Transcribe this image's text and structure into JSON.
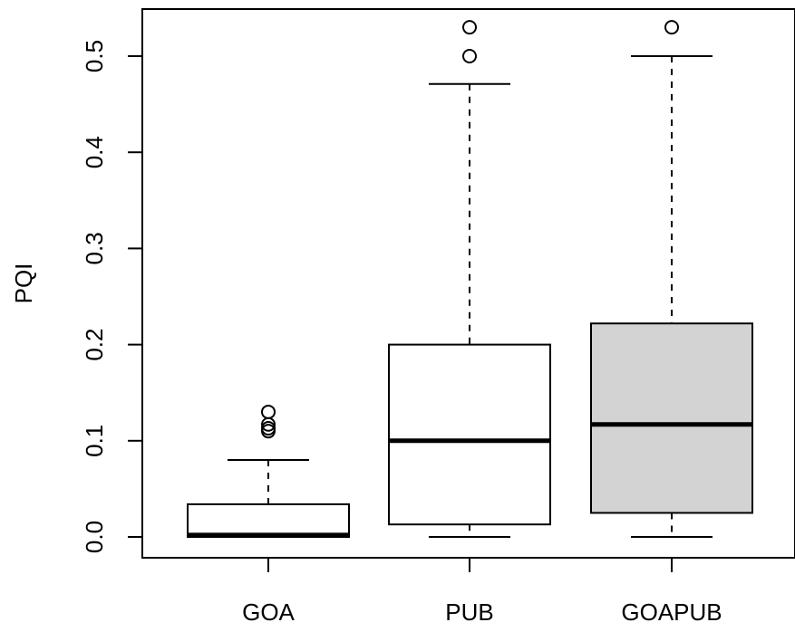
{
  "chart_data": {
    "type": "boxplot",
    "title": "",
    "xlabel": "",
    "ylabel": "PQI",
    "ylim": [
      -0.02,
      0.55
    ],
    "yticks": [
      0.0,
      0.1,
      0.2,
      0.3,
      0.4,
      0.5
    ],
    "ytick_labels": [
      "0.0",
      "0.1",
      "0.2",
      "0.3",
      "0.4",
      "0.5"
    ],
    "categories": [
      "GOA",
      "PUB",
      "GOAPUB"
    ],
    "boxes": [
      {
        "category": "GOA",
        "whisker_low": 0.0,
        "q1": 0.0,
        "median": 0.002,
        "q3": 0.034,
        "whisker_high": 0.08,
        "outliers": [
          0.11,
          0.113,
          0.117,
          0.13
        ],
        "fill": "#ffffff"
      },
      {
        "category": "PUB",
        "whisker_low": 0.0,
        "q1": 0.013,
        "median": 0.1,
        "q3": 0.2,
        "whisker_high": 0.471,
        "outliers": [
          0.5,
          0.53
        ],
        "fill": "#ffffff"
      },
      {
        "category": "GOAPUB",
        "whisker_low": 0.0,
        "q1": 0.025,
        "median": 0.117,
        "q3": 0.222,
        "whisker_high": 0.5,
        "outliers": [
          0.53
        ],
        "fill": "#d3d3d3"
      }
    ],
    "grid": false,
    "legend": "none"
  }
}
